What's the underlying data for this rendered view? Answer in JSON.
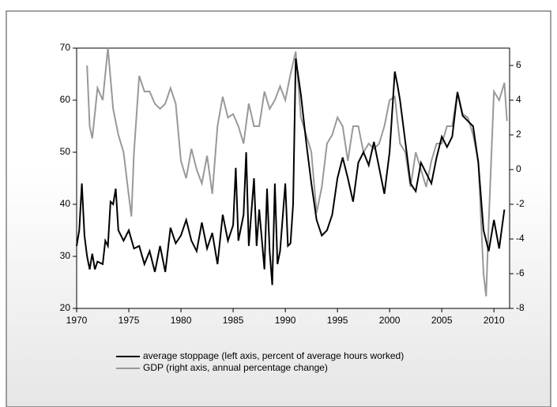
{
  "chart_data": {
    "type": "line",
    "xlim": [
      1970,
      2011.5
    ],
    "xticks": [
      1970,
      1975,
      1980,
      1985,
      1990,
      1995,
      2000,
      2005,
      2010
    ],
    "ylim": [
      20,
      70
    ],
    "yticks": [
      20,
      30,
      40,
      50,
      60,
      70
    ],
    "y2lim": [
      -8,
      7
    ],
    "y2ticks": [
      -8,
      -6,
      -4,
      -2,
      0,
      2,
      4,
      6
    ],
    "series": [
      {
        "name": "average stoppage (left axis, percent of average hours worked)",
        "color": "#000000",
        "axis": "y",
        "x": [
          1970,
          1970.25,
          1970.5,
          1970.75,
          1971,
          1971.25,
          1971.5,
          1971.75,
          1972,
          1972.5,
          1972.75,
          1973,
          1973.25,
          1973.5,
          1973.75,
          1974,
          1974.5,
          1975,
          1975.5,
          1976,
          1976.5,
          1977,
          1977.5,
          1978,
          1978.5,
          1979,
          1979.5,
          1980,
          1980.5,
          1981,
          1981.5,
          1982,
          1982.5,
          1983,
          1983.5,
          1984,
          1984.5,
          1985,
          1985.25,
          1985.5,
          1986,
          1986.25,
          1986.5,
          1987,
          1987.25,
          1987.5,
          1988,
          1988.25,
          1988.5,
          1988.75,
          1989,
          1989.25,
          1989.5,
          1990,
          1990.25,
          1990.5,
          1990.75,
          1991,
          1991.5,
          1992,
          1992.5,
          1993,
          1993.5,
          1994,
          1994.5,
          1995,
          1995.5,
          1996,
          1996.5,
          1997,
          1997.5,
          1998,
          1998.5,
          1999,
          1999.5,
          2000,
          2000.5,
          2000.75,
          2001,
          2001.5,
          2002,
          2002.5,
          2003,
          2003.5,
          2004,
          2004.5,
          2005,
          2005.5,
          2006,
          2006.5,
          2007,
          2007.5,
          2008,
          2008.5,
          2009,
          2009.5,
          2010,
          2010.5,
          2011
        ],
        "values": [
          32,
          35,
          44,
          34,
          30,
          27.5,
          30.5,
          27.5,
          29,
          28.5,
          33,
          32,
          40.5,
          40,
          43,
          35,
          33,
          35,
          31.5,
          32,
          28.5,
          31,
          27,
          32,
          27,
          35.5,
          32.5,
          34,
          37,
          33,
          31,
          36.5,
          31.5,
          34.5,
          28.5,
          38,
          33,
          36,
          47,
          33,
          38,
          50,
          32,
          45,
          32,
          39,
          27.5,
          43,
          31,
          24.5,
          44,
          28.5,
          31,
          44,
          32,
          32.5,
          40,
          68,
          61,
          52,
          44,
          37,
          34,
          35,
          38,
          45,
          49,
          45,
          40.5,
          48,
          50,
          47.5,
          52,
          47,
          42,
          50,
          65.5,
          63,
          60,
          52,
          44,
          42.5,
          48,
          46,
          44,
          49,
          53,
          51,
          53,
          61.5,
          57,
          56,
          55,
          48,
          35,
          31,
          37,
          31.5,
          39
        ]
      },
      {
        "name": "GDP (right axis, annual percentage change)",
        "color": "#999999",
        "axis": "y2",
        "x": [
          1971,
          1971.25,
          1971.5,
          1972,
          1972.5,
          1973,
          1973.5,
          1974,
          1974.5,
          1975,
          1975.25,
          1975.5,
          1976,
          1976.5,
          1977,
          1977.5,
          1978,
          1978.5,
          1979,
          1979.5,
          1980,
          1980.5,
          1981,
          1981.5,
          1982,
          1982.5,
          1983,
          1983.5,
          1984,
          1984.5,
          1985,
          1985.5,
          1986,
          1986.5,
          1987,
          1987.5,
          1988,
          1988.5,
          1989,
          1989.5,
          1990,
          1990.5,
          1991,
          1991.5,
          1992,
          1992.5,
          1993,
          1993.5,
          1994,
          1994.5,
          1995,
          1995.5,
          1996,
          1996.5,
          1997,
          1997.5,
          1998,
          1998.5,
          1999,
          1999.5,
          2000,
          2000.5,
          2001,
          2001.5,
          2002,
          2002.5,
          2003,
          2003.5,
          2004,
          2004.5,
          2005,
          2005.5,
          2006,
          2006.5,
          2007,
          2007.5,
          2008,
          2008.5,
          2009,
          2009.25,
          2009.5,
          2010,
          2010.5,
          2011,
          2011.25
        ],
        "values": [
          6,
          2.5,
          1.8,
          4.7,
          4,
          7,
          3.5,
          2,
          1,
          -1.5,
          -2.7,
          1,
          5.4,
          4.5,
          4.5,
          3.8,
          3.5,
          3.8,
          4.7,
          3.8,
          0.5,
          -0.5,
          1.2,
          0,
          -0.8,
          0.8,
          -1.4,
          2.5,
          4.2,
          3,
          3.2,
          2.5,
          1.5,
          3.8,
          2.5,
          2.5,
          4.5,
          3.5,
          4,
          4.8,
          4,
          5.5,
          6.8,
          3,
          2,
          1,
          -2.5,
          -1,
          1.5,
          2,
          3,
          2.5,
          0.5,
          2.5,
          2.5,
          1,
          1.5,
          1.2,
          1.5,
          2.5,
          4,
          4.2,
          1.5,
          1,
          -1,
          1,
          0,
          -1,
          0.5,
          1.5,
          1.5,
          2.5,
          2.5,
          4.5,
          3.2,
          3,
          2,
          0.5,
          -6,
          -7.3,
          -3,
          4.5,
          4,
          5,
          2.8
        ]
      }
    ]
  }
}
